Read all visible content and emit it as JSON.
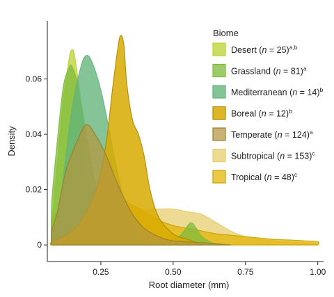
{
  "chart_data": {
    "type": "area",
    "xlabel": "Root diameter (mm)",
    "ylabel": "Density",
    "xlim": [
      0.065,
      1.02
    ],
    "ylim": [
      -0.006,
      0.081
    ],
    "xticks": [
      "0.25",
      "0.50",
      "0.75",
      "1.00"
    ],
    "xtick_values": [
      0.25,
      0.5,
      0.75,
      1.0
    ],
    "yticks": [
      "0",
      "0.02",
      "0.04",
      "0.06"
    ],
    "ytick_values": [
      0,
      0.02,
      0.04,
      0.06
    ],
    "grid": false,
    "legend_position": "top-right",
    "legend": {
      "title": "Biome",
      "entries": [
        {
          "name": "Desert",
          "n": "25",
          "sig": "a,b"
        },
        {
          "name": "Grassland",
          "n": "81",
          "sig": "a"
        },
        {
          "name": "Mediterranean",
          "n": "14",
          "sig": "b"
        },
        {
          "name": "Boreal",
          "n": "12",
          "sig": "b"
        },
        {
          "name": "Temperate",
          "n": "124",
          "sig": "a"
        },
        {
          "name": "Subtropical",
          "n": "153",
          "sig": "c"
        },
        {
          "name": "Tropical",
          "n": "48",
          "sig": "c"
        }
      ]
    },
    "series": [
      {
        "name": "Subtropical",
        "color": "#E6CC6A",
        "opacity": 0.72,
        "outline": "#E6CC6A",
        "points": [
          [
            0.08,
            0
          ],
          [
            0.08,
            0.009
          ],
          [
            0.1,
            0.012
          ],
          [
            0.15,
            0.017
          ],
          [
            0.2,
            0.019
          ],
          [
            0.25,
            0.018
          ],
          [
            0.3,
            0.016
          ],
          [
            0.35,
            0.014
          ],
          [
            0.4,
            0.013
          ],
          [
            0.45,
            0.013
          ],
          [
            0.5,
            0.013
          ],
          [
            0.55,
            0.012
          ],
          [
            0.6,
            0.011
          ],
          [
            0.65,
            0.008
          ],
          [
            0.7,
            0.005
          ],
          [
            0.75,
            0.003
          ],
          [
            0.8,
            0.002
          ],
          [
            0.85,
            0.0015
          ],
          [
            0.9,
            0.001
          ],
          [
            0.95,
            0.0008
          ],
          [
            1.0,
            0.0005
          ],
          [
            1.0,
            0
          ]
        ]
      },
      {
        "name": "Tropical",
        "color": "#E2B400",
        "opacity": 0.72,
        "outline": "#C9A000",
        "points": [
          [
            0.08,
            0
          ],
          [
            0.08,
            0.008
          ],
          [
            0.1,
            0.012
          ],
          [
            0.15,
            0.019
          ],
          [
            0.2,
            0.021
          ],
          [
            0.25,
            0.02
          ],
          [
            0.3,
            0.018
          ],
          [
            0.35,
            0.015
          ],
          [
            0.4,
            0.012
          ],
          [
            0.45,
            0.009
          ],
          [
            0.5,
            0.007
          ],
          [
            0.55,
            0.006
          ],
          [
            0.6,
            0.005
          ],
          [
            0.65,
            0.004
          ],
          [
            0.7,
            0.0035
          ],
          [
            0.75,
            0.003
          ],
          [
            0.8,
            0.0025
          ],
          [
            0.85,
            0.002
          ],
          [
            0.9,
            0.0018
          ],
          [
            0.95,
            0.0015
          ],
          [
            1.0,
            0.0012
          ],
          [
            1.0,
            0
          ]
        ]
      },
      {
        "name": "Desert",
        "color": "#BBD12F",
        "opacity": 0.75,
        "outline": "#BBD12F",
        "points": [
          [
            0.08,
            0
          ],
          [
            0.08,
            0.006
          ],
          [
            0.1,
            0.03
          ],
          [
            0.12,
            0.052
          ],
          [
            0.14,
            0.067
          ],
          [
            0.15,
            0.0705
          ],
          [
            0.16,
            0.068
          ],
          [
            0.18,
            0.052
          ],
          [
            0.2,
            0.03
          ],
          [
            0.22,
            0.015
          ],
          [
            0.25,
            0.006
          ],
          [
            0.28,
            0.002
          ],
          [
            0.3,
            0
          ]
        ]
      },
      {
        "name": "Grassland",
        "color": "#7DBB3A",
        "opacity": 0.75,
        "outline": "#7DBB3A",
        "points": [
          [
            0.08,
            0
          ],
          [
            0.08,
            0.015
          ],
          [
            0.1,
            0.038
          ],
          [
            0.12,
            0.057
          ],
          [
            0.14,
            0.064
          ],
          [
            0.15,
            0.0645
          ],
          [
            0.17,
            0.058
          ],
          [
            0.2,
            0.04
          ],
          [
            0.22,
            0.028
          ],
          [
            0.25,
            0.015
          ],
          [
            0.3,
            0.006
          ],
          [
            0.35,
            0.002
          ],
          [
            0.4,
            0.001
          ],
          [
            0.45,
            0.001
          ],
          [
            0.5,
            0.002
          ],
          [
            0.53,
            0.004
          ],
          [
            0.56,
            0.008
          ],
          [
            0.58,
            0.006
          ],
          [
            0.6,
            0.003
          ],
          [
            0.63,
            0.001
          ],
          [
            0.66,
            0
          ]
        ]
      },
      {
        "name": "Mediterranean",
        "color": "#63B47A",
        "opacity": 0.78,
        "outline": "#63B47A",
        "points": [
          [
            0.08,
            0
          ],
          [
            0.08,
            0.004
          ],
          [
            0.1,
            0.01
          ],
          [
            0.12,
            0.024
          ],
          [
            0.15,
            0.049
          ],
          [
            0.18,
            0.064
          ],
          [
            0.2,
            0.0685
          ],
          [
            0.22,
            0.066
          ],
          [
            0.25,
            0.056
          ],
          [
            0.28,
            0.041
          ],
          [
            0.3,
            0.03
          ],
          [
            0.33,
            0.016
          ],
          [
            0.36,
            0.007
          ],
          [
            0.4,
            0.002
          ],
          [
            0.45,
            0
          ]
        ]
      },
      {
        "name": "Boreal",
        "color": "#D8AA00",
        "opacity": 0.85,
        "outline": "#B08800",
        "points": [
          [
            0.08,
            0
          ],
          [
            0.08,
            0.001
          ],
          [
            0.15,
            0.005
          ],
          [
            0.2,
            0.012
          ],
          [
            0.24,
            0.022
          ],
          [
            0.27,
            0.038
          ],
          [
            0.29,
            0.056
          ],
          [
            0.31,
            0.072
          ],
          [
            0.32,
            0.0758
          ],
          [
            0.33,
            0.072
          ],
          [
            0.34,
            0.058
          ],
          [
            0.36,
            0.045
          ],
          [
            0.38,
            0.04
          ],
          [
            0.4,
            0.032
          ],
          [
            0.42,
            0.02
          ],
          [
            0.45,
            0.01
          ],
          [
            0.5,
            0.004
          ],
          [
            0.55,
            0.002
          ],
          [
            0.6,
            0
          ]
        ]
      },
      {
        "name": "Temperate",
        "color": "#B4963F",
        "opacity": 0.72,
        "outline": "#9A7D2E",
        "points": [
          [
            0.08,
            0
          ],
          [
            0.08,
            0.005
          ],
          [
            0.1,
            0.012
          ],
          [
            0.13,
            0.027
          ],
          [
            0.17,
            0.038
          ],
          [
            0.2,
            0.0435
          ],
          [
            0.23,
            0.04
          ],
          [
            0.27,
            0.032
          ],
          [
            0.3,
            0.024
          ],
          [
            0.33,
            0.017
          ],
          [
            0.36,
            0.011
          ],
          [
            0.4,
            0.006
          ],
          [
            0.45,
            0.003
          ],
          [
            0.5,
            0.0015
          ],
          [
            0.6,
            0.0008
          ],
          [
            0.7,
            0
          ]
        ]
      }
    ]
  }
}
